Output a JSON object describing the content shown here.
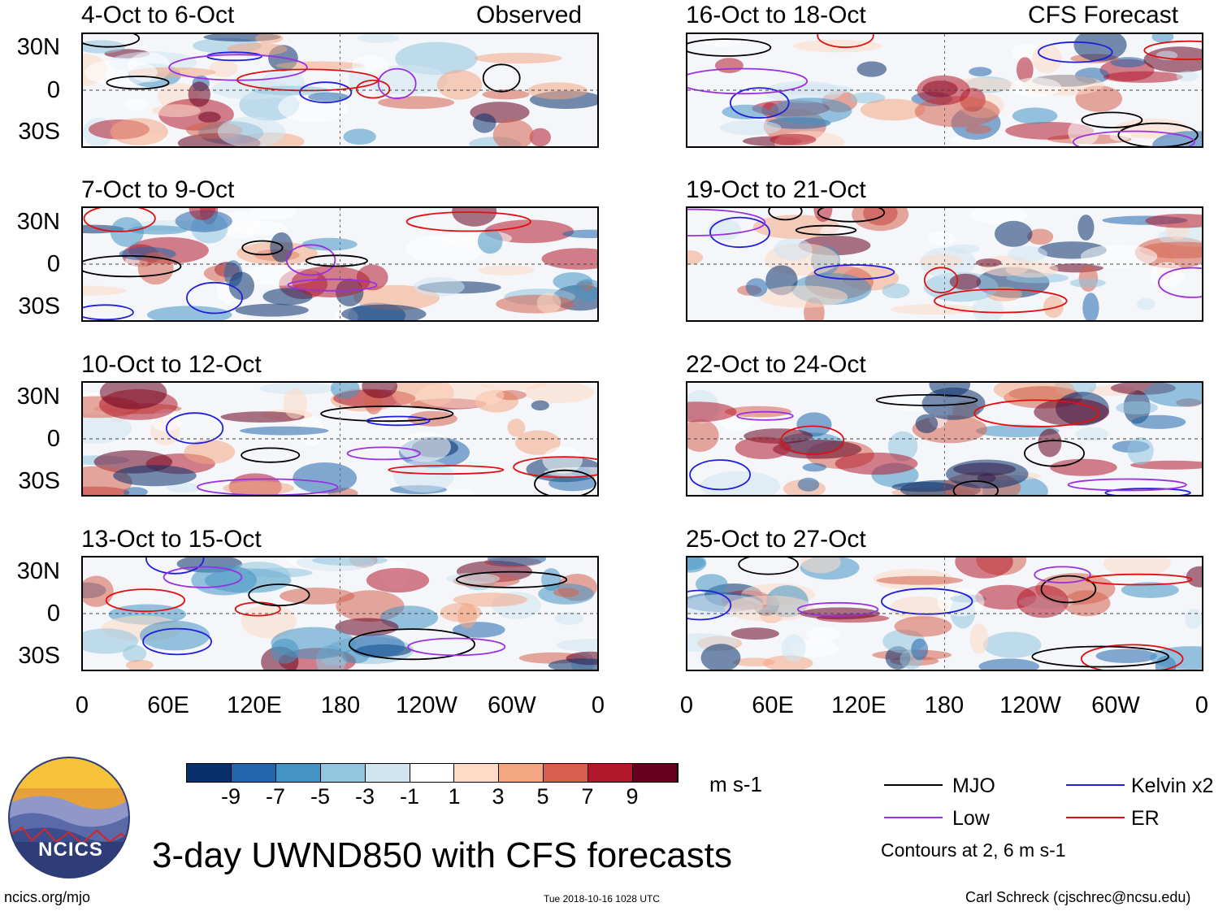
{
  "figure": {
    "title": "3-day UWND850 with CFS forecasts",
    "site": "ncics.org/mjo",
    "timestamp": "Tue 2018-10-16 1028 UTC",
    "author": "Carl Schreck (cjschrec@ncsu.edu)",
    "logo_text": "NCICS"
  },
  "chart_data": {
    "type": "heatmap",
    "variable": "850-hPa zonal wind anomaly",
    "units": "m s-1",
    "labels": {
      "observed": "Observed",
      "forecast": "CFS Forecast"
    },
    "panels": [
      {
        "title": "4-Oct to 6-Oct",
        "source": "Observed"
      },
      {
        "title": "7-Oct to 9-Oct",
        "source": "Observed"
      },
      {
        "title": "10-Oct to 12-Oct",
        "source": "Observed"
      },
      {
        "title": "13-Oct to 15-Oct",
        "source": "Observed"
      },
      {
        "title": "16-Oct to 18-Oct",
        "source": "CFS Forecast"
      },
      {
        "title": "19-Oct to 21-Oct",
        "source": "CFS Forecast"
      },
      {
        "title": "22-Oct to 24-Oct",
        "source": "CFS Forecast"
      },
      {
        "title": "25-Oct to 27-Oct",
        "source": "CFS Forecast"
      }
    ],
    "y_ticks": [
      "30N",
      "0",
      "30S"
    ],
    "x_ticks": [
      "0",
      "60E",
      "120E",
      "180",
      "120W",
      "60W",
      "0"
    ],
    "colorbar": {
      "ticks": [
        "-9",
        "-7",
        "-5",
        "-3",
        "-1",
        "1",
        "3",
        "5",
        "7",
        "9"
      ],
      "units": "m s-1",
      "colors": [
        "#08306b",
        "#2166ac",
        "#4393c3",
        "#92c5de",
        "#d1e5f0",
        "#ffffff",
        "#fddbc7",
        "#f4a582",
        "#d6604d",
        "#b2182b",
        "#67001f"
      ]
    },
    "legend": [
      {
        "label": "MJO",
        "color": "#000000"
      },
      {
        "label": "Kelvin x2",
        "color": "#1f1fdd"
      },
      {
        "label": "Low",
        "color": "#9b30e0"
      },
      {
        "label": "ER",
        "color": "#e01010"
      }
    ],
    "contour_note": "Contours at 2, 6 m s-1"
  }
}
